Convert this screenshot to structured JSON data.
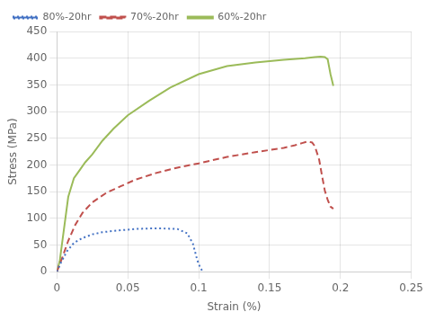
{
  "chart_data": {
    "type": "line",
    "xlabel": "Strain (%)",
    "ylabel": "Stress (MPa)",
    "xlim": [
      0,
      0.25
    ],
    "ylim": [
      0,
      450
    ],
    "xticks": [
      0,
      0.05,
      0.1,
      0.15,
      0.2,
      0.25
    ],
    "yticks": [
      0,
      50,
      100,
      150,
      200,
      250,
      300,
      350,
      400,
      450
    ],
    "grid": true,
    "legend": "upper left",
    "series": [
      {
        "name": "80%-20hr",
        "color": "#4472C4",
        "line_style": "dotted",
        "x": [
          0.0,
          0.003,
          0.007,
          0.012,
          0.018,
          0.025,
          0.032,
          0.042,
          0.055,
          0.065,
          0.075,
          0.085,
          0.092,
          0.096,
          0.099,
          0.101,
          0.103
        ],
        "values": [
          0,
          18,
          38,
          54,
          63,
          70,
          74,
          77,
          80,
          81,
          81,
          80,
          72,
          52,
          22,
          8,
          0
        ]
      },
      {
        "name": "70%-20hr",
        "color": "#C0504D",
        "line_style": "dashed",
        "x": [
          0.0,
          0.004,
          0.008,
          0.013,
          0.018,
          0.025,
          0.035,
          0.045,
          0.055,
          0.07,
          0.085,
          0.1,
          0.12,
          0.14,
          0.16,
          0.168,
          0.173,
          0.177,
          0.18,
          0.182,
          0.185,
          0.187,
          0.189,
          0.191,
          0.193,
          0.195
        ],
        "values": [
          0,
          28,
          58,
          88,
          110,
          130,
          148,
          160,
          172,
          185,
          195,
          203,
          215,
          224,
          232,
          237,
          241,
          244,
          242,
          235,
          210,
          180,
          152,
          135,
          122,
          118
        ]
      },
      {
        "name": "60%-20hr",
        "color": "#9BBB59",
        "line_style": "solid",
        "x": [
          0.0,
          0.002,
          0.005,
          0.008,
          0.012,
          0.016,
          0.02,
          0.025,
          0.032,
          0.04,
          0.05,
          0.065,
          0.08,
          0.1,
          0.12,
          0.14,
          0.16,
          0.175,
          0.182,
          0.186,
          0.189,
          0.191,
          0.193,
          0.195
        ],
        "values": [
          0,
          20,
          80,
          140,
          175,
          190,
          205,
          220,
          245,
          268,
          293,
          320,
          345,
          370,
          385,
          392,
          397,
          400,
          402,
          403,
          402,
          398,
          370,
          348
        ]
      }
    ]
  }
}
